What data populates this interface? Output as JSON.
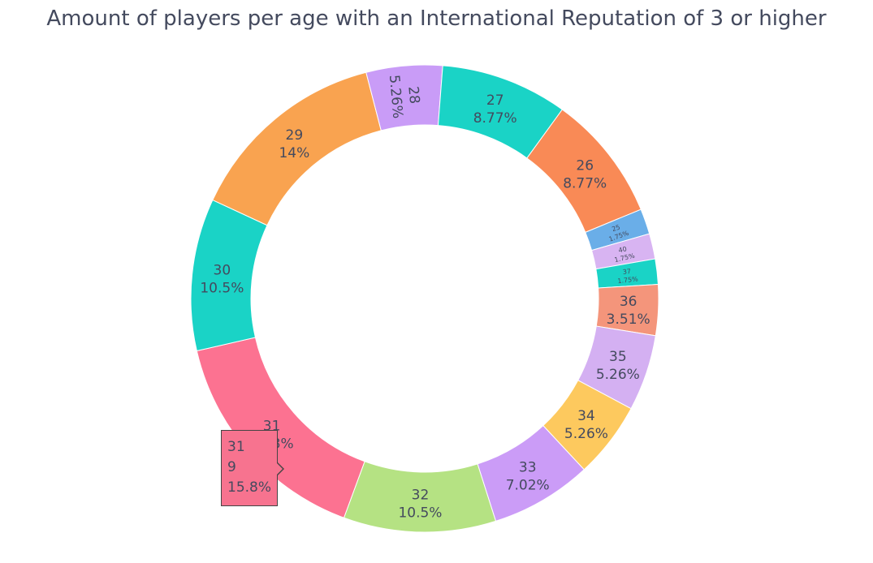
{
  "chart_data": {
    "type": "pie",
    "hole": true,
    "title": "Amount of players per age with an International Reputation of 3 or higher",
    "slices": [
      {
        "label": "26",
        "value": 5,
        "percent": "8.77%",
        "color": "#f98a56"
      },
      {
        "label": "25",
        "value": 1,
        "percent": "1.75%",
        "color": "#6aaee8"
      },
      {
        "label": "40",
        "value": 1,
        "percent": "1.75%",
        "color": "#d8b4f2"
      },
      {
        "label": "37",
        "value": 1,
        "percent": "1.75%",
        "color": "#1ad3c6"
      },
      {
        "label": "36",
        "value": 2,
        "percent": "3.51%",
        "color": "#f4957b"
      },
      {
        "label": "35",
        "value": 3,
        "percent": "5.26%",
        "color": "#d4b0f2"
      },
      {
        "label": "34",
        "value": 3,
        "percent": "5.26%",
        "color": "#fdc95e"
      },
      {
        "label": "33",
        "value": 4,
        "percent": "7.02%",
        "color": "#cb9cf7"
      },
      {
        "label": "32",
        "value": 6,
        "percent": "10.5%",
        "color": "#b5e283"
      },
      {
        "label": "31",
        "value": 9,
        "percent": "15.8%",
        "color": "#fc7291"
      },
      {
        "label": "30",
        "value": 6,
        "percent": "10.5%",
        "color": "#1ad3c6"
      },
      {
        "label": "29",
        "value": 8,
        "percent": "14%",
        "color": "#f9a350"
      },
      {
        "label": "28",
        "value": 3,
        "percent": "5.26%",
        "color": "#c99cf7"
      },
      {
        "label": "27",
        "value": 5,
        "percent": "8.77%",
        "color": "#1ad3c6"
      }
    ],
    "tooltip": {
      "label": "31",
      "value": "9",
      "percent": "15.8%"
    }
  }
}
